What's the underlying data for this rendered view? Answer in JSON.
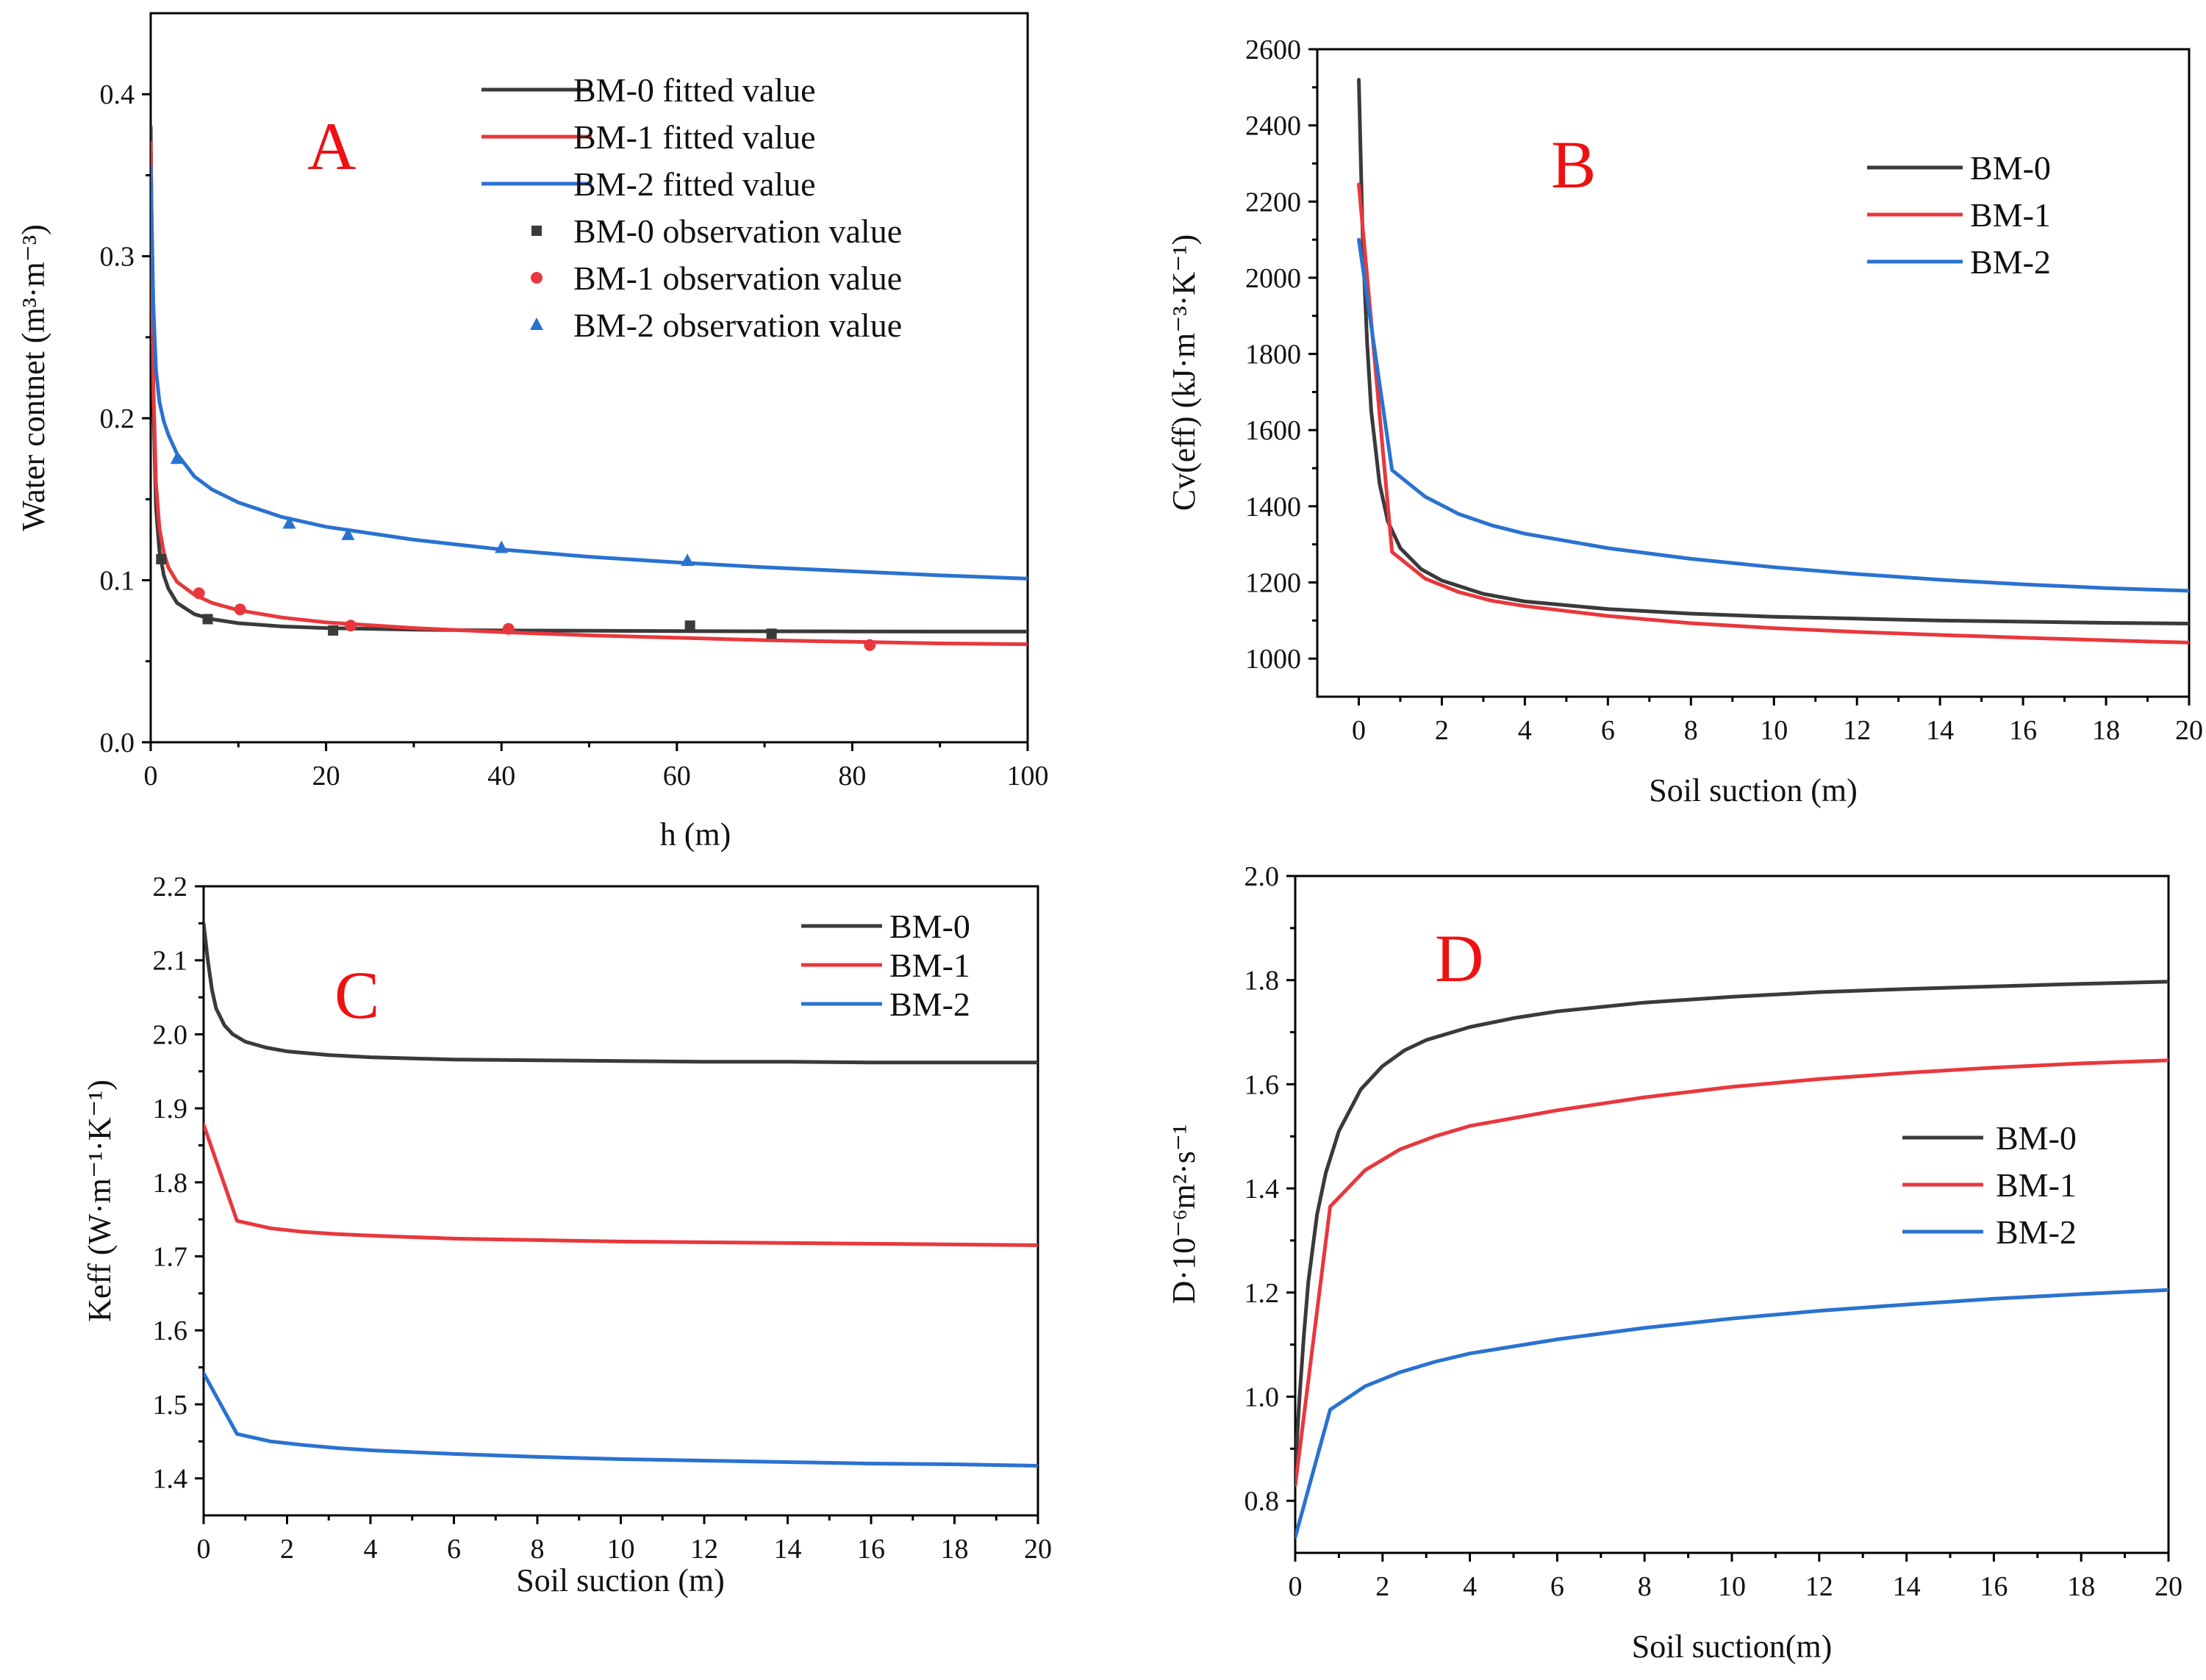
{
  "colors": {
    "BM-0": "#3a3a3a",
    "BM-1": "#e8383d",
    "BM-2": "#2a72d0",
    "panel_letter": "#ee1111"
  },
  "chart_data": [
    {
      "id": "A",
      "type": "line",
      "panel_label": "A",
      "xlabel": "h (m)",
      "ylabel": "Water contnet (m³·m⁻³)",
      "xlim": [
        0,
        100
      ],
      "ylim": [
        0,
        0.45
      ],
      "xticks": [
        0,
        20,
        40,
        60,
        80,
        100
      ],
      "yticks": [
        0.0,
        0.1,
        0.2,
        0.3,
        0.4
      ],
      "tick_decimals_y": 1,
      "legend": [
        "BM-0 fitted value",
        "BM-1 fitted value",
        "BM-2 fitted value",
        "BM-0 observation value",
        "BM-1 observation value",
        "BM-2 observation value"
      ],
      "series": [
        {
          "name": "BM-0 fitted value",
          "color_key": "BM-0",
          "x": [
            0,
            0.3,
            0.6,
            1,
            1.5,
            2,
            3,
            5,
            7,
            10,
            15,
            20,
            30,
            40,
            50,
            60,
            70,
            80,
            90,
            100
          ],
          "y": [
            0.38,
            0.21,
            0.145,
            0.118,
            0.103,
            0.095,
            0.086,
            0.079,
            0.076,
            0.0735,
            0.0715,
            0.0705,
            0.0695,
            0.069,
            0.0688,
            0.0686,
            0.0685,
            0.0684,
            0.0683,
            0.0683
          ]
        },
        {
          "name": "BM-1 fitted value",
          "color_key": "BM-1",
          "x": [
            0,
            0.3,
            0.6,
            1,
            1.5,
            2,
            3,
            5,
            7,
            10,
            15,
            20,
            30,
            40,
            50,
            60,
            70,
            80,
            90,
            100
          ],
          "y": [
            0.37,
            0.22,
            0.16,
            0.132,
            0.117,
            0.108,
            0.099,
            0.091,
            0.086,
            0.0815,
            0.077,
            0.074,
            0.0705,
            0.068,
            0.066,
            0.0645,
            0.063,
            0.062,
            0.061,
            0.0605
          ]
        },
        {
          "name": "BM-2 fitted value",
          "color_key": "BM-2",
          "x": [
            0,
            0.3,
            0.6,
            1,
            1.5,
            2,
            3,
            5,
            7,
            10,
            15,
            20,
            30,
            40,
            50,
            60,
            70,
            80,
            90,
            100
          ],
          "y": [
            0.355,
            0.27,
            0.23,
            0.21,
            0.198,
            0.19,
            0.178,
            0.164,
            0.156,
            0.148,
            0.139,
            0.133,
            0.125,
            0.119,
            0.1145,
            0.111,
            0.108,
            0.1055,
            0.103,
            0.101
          ]
        }
      ],
      "points": [
        {
          "name": "BM-0 observation value",
          "color_key": "BM-0",
          "marker": "square",
          "x": [
            1.2,
            6.5,
            20.8,
            61.5,
            70.8
          ],
          "y": [
            0.113,
            0.076,
            0.069,
            0.072,
            0.067
          ]
        },
        {
          "name": "BM-1 observation value",
          "color_key": "BM-1",
          "marker": "circle",
          "x": [
            5.5,
            10.2,
            22.8,
            40.8,
            82.0
          ],
          "y": [
            0.092,
            0.082,
            0.072,
            0.07,
            0.06
          ]
        },
        {
          "name": "BM-2 observation value",
          "color_key": "BM-2",
          "marker": "triangle",
          "x": [
            3.0,
            15.8,
            22.5,
            40.0,
            61.2
          ],
          "y": [
            0.175,
            0.135,
            0.128,
            0.12,
            0.112
          ]
        }
      ]
    },
    {
      "id": "B",
      "type": "line",
      "panel_label": "B",
      "xlabel": "Soil suction (m)",
      "ylabel": "Cv(eff) (kJ·m⁻³·K⁻¹)",
      "xlim": [
        -1,
        20
      ],
      "ylim": [
        900,
        2600
      ],
      "xticks": [
        0,
        2,
        4,
        6,
        8,
        10,
        12,
        14,
        16,
        18,
        20
      ],
      "yticks": [
        1000,
        1200,
        1400,
        1600,
        1800,
        2000,
        2200,
        2400,
        2600
      ],
      "tick_decimals_y": 0,
      "legend": [
        "BM-0",
        "BM-1",
        "BM-2"
      ],
      "series": [
        {
          "name": "BM-0",
          "color_key": "BM-0",
          "x": [
            0,
            0.1,
            0.2,
            0.3,
            0.5,
            0.7,
            1,
            1.5,
            2,
            3,
            4,
            6,
            8,
            10,
            12,
            14,
            16,
            18,
            20
          ],
          "y": [
            2520,
            2080,
            1830,
            1650,
            1460,
            1360,
            1290,
            1235,
            1205,
            1170,
            1150,
            1130,
            1118,
            1110,
            1105,
            1100,
            1097,
            1094,
            1092
          ]
        },
        {
          "name": "BM-1",
          "color_key": "BM-1",
          "x": [
            0,
            0.8,
            1.6,
            2.4,
            3.2,
            4,
            6,
            8,
            10,
            12,
            14,
            16,
            18,
            20
          ],
          "y": [
            2245,
            1280,
            1210,
            1175,
            1152,
            1138,
            1112,
            1093,
            1080,
            1070,
            1062,
            1055,
            1048,
            1042
          ]
        },
        {
          "name": "BM-2",
          "color_key": "BM-2",
          "x": [
            0,
            0.8,
            1.6,
            2.4,
            3.2,
            4,
            6,
            8,
            10,
            12,
            14,
            16,
            18,
            20
          ],
          "y": [
            2100,
            1495,
            1425,
            1380,
            1350,
            1328,
            1290,
            1262,
            1240,
            1222,
            1207,
            1195,
            1185,
            1178
          ]
        }
      ]
    },
    {
      "id": "C",
      "type": "line",
      "panel_label": "C",
      "xlabel": "Soil suction (m)",
      "ylabel": "Keff (W·m⁻¹·K⁻¹)",
      "xlim": [
        0,
        20
      ],
      "ylim": [
        1.35,
        2.2
      ],
      "xticks": [
        0,
        2,
        4,
        6,
        8,
        10,
        12,
        14,
        16,
        18,
        20
      ],
      "yticks": [
        1.4,
        1.5,
        1.6,
        1.7,
        1.8,
        1.9,
        2.0,
        2.1,
        2.2
      ],
      "tick_decimals_y": 1,
      "legend": [
        "BM-0",
        "BM-1",
        "BM-2"
      ],
      "series": [
        {
          "name": "BM-0",
          "color_key": "BM-0",
          "x": [
            0,
            0.1,
            0.2,
            0.3,
            0.5,
            0.7,
            1,
            1.5,
            2,
            3,
            4,
            6,
            8,
            10,
            12,
            14,
            16,
            18,
            20
          ],
          "y": [
            2.15,
            2.1,
            2.06,
            2.035,
            2.012,
            2.0,
            1.99,
            1.982,
            1.977,
            1.972,
            1.969,
            1.966,
            1.965,
            1.964,
            1.963,
            1.963,
            1.962,
            1.962,
            1.962
          ]
        },
        {
          "name": "BM-1",
          "color_key": "BM-1",
          "x": [
            0,
            0.8,
            1.6,
            2.4,
            3.2,
            4,
            6,
            8,
            10,
            12,
            14,
            16,
            18,
            20
          ],
          "y": [
            1.878,
            1.748,
            1.738,
            1.733,
            1.73,
            1.728,
            1.724,
            1.722,
            1.72,
            1.719,
            1.718,
            1.717,
            1.716,
            1.715
          ]
        },
        {
          "name": "BM-2",
          "color_key": "BM-2",
          "x": [
            0,
            0.8,
            1.6,
            2.4,
            3.2,
            4,
            6,
            8,
            10,
            12,
            14,
            16,
            18,
            20
          ],
          "y": [
            1.542,
            1.46,
            1.45,
            1.445,
            1.441,
            1.438,
            1.433,
            1.429,
            1.426,
            1.424,
            1.422,
            1.42,
            1.419,
            1.417
          ]
        }
      ]
    },
    {
      "id": "D",
      "type": "line",
      "panel_label": "D",
      "xlabel": "Soil suction(m)",
      "ylabel": "D·10⁻⁶m²·s⁻¹",
      "xlim": [
        0,
        20
      ],
      "ylim": [
        0.7,
        2.0
      ],
      "xticks": [
        0,
        2,
        4,
        6,
        8,
        10,
        12,
        14,
        16,
        18,
        20
      ],
      "yticks": [
        0.8,
        1.0,
        1.2,
        1.4,
        1.6,
        1.8,
        2.0
      ],
      "tick_decimals_y": 1,
      "legend": [
        "BM-0",
        "BM-1",
        "BM-2"
      ],
      "series": [
        {
          "name": "BM-0",
          "color_key": "BM-0",
          "x": [
            0,
            0.1,
            0.2,
            0.3,
            0.5,
            0.7,
            1,
            1.5,
            2,
            2.5,
            3,
            4,
            5,
            6,
            8,
            10,
            12,
            14,
            16,
            18,
            20
          ],
          "y": [
            0.86,
            1.0,
            1.12,
            1.22,
            1.35,
            1.43,
            1.51,
            1.59,
            1.635,
            1.665,
            1.685,
            1.71,
            1.727,
            1.74,
            1.757,
            1.768,
            1.777,
            1.783,
            1.788,
            1.793,
            1.797
          ]
        },
        {
          "name": "BM-1",
          "color_key": "BM-1",
          "x": [
            0,
            0.8,
            1.6,
            2.4,
            3.2,
            4,
            6,
            8,
            10,
            12,
            14,
            16,
            18,
            20
          ],
          "y": [
            0.83,
            1.365,
            1.435,
            1.475,
            1.5,
            1.52,
            1.55,
            1.575,
            1.595,
            1.61,
            1.622,
            1.632,
            1.64,
            1.646
          ]
        },
        {
          "name": "BM-2",
          "color_key": "BM-2",
          "x": [
            0,
            0.8,
            1.6,
            2.4,
            3.2,
            4,
            6,
            8,
            10,
            12,
            14,
            16,
            18,
            20
          ],
          "y": [
            0.73,
            0.975,
            1.02,
            1.047,
            1.067,
            1.083,
            1.11,
            1.132,
            1.15,
            1.165,
            1.177,
            1.188,
            1.197,
            1.205
          ]
        }
      ]
    }
  ]
}
